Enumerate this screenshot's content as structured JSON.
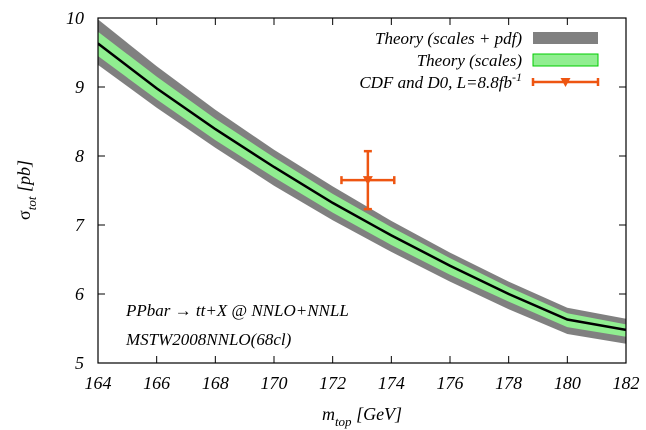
{
  "chart_data": {
    "type": "line",
    "xlabel": {
      "main": "m",
      "sub": "top",
      "rest": " [GeV]"
    },
    "ylabel": {
      "main": "σ",
      "sub": "tot",
      "rest": " [pb]"
    },
    "xlim": [
      164,
      182
    ],
    "ylim": [
      5,
      10
    ],
    "xticks": [
      164,
      166,
      168,
      170,
      172,
      174,
      176,
      178,
      180,
      182
    ],
    "yticks": [
      5,
      6,
      7,
      8,
      9,
      10
    ],
    "grid": false,
    "legend_position": "top-right",
    "colors": {
      "band_full": "#808080",
      "band_scales": "#90ee90",
      "band_scales_border": "#00cc00",
      "central": "#000000",
      "data": "#ee5511"
    },
    "legend": [
      {
        "text": "Theory (scales + pdf)"
      },
      {
        "text": "Theory (scales)"
      },
      {
        "text": "CDF and D0, L=8.8fb",
        "sup": "-1"
      }
    ],
    "series": [
      {
        "name": "Theory (scales + pdf)",
        "x": [
          164,
          166,
          168,
          170,
          172,
          174,
          176,
          178,
          180,
          182
        ],
        "lower": [
          9.32,
          8.7,
          8.12,
          7.57,
          7.07,
          6.61,
          6.18,
          5.78,
          5.42,
          5.28
        ],
        "upper": [
          9.98,
          9.3,
          8.67,
          8.09,
          7.56,
          7.06,
          6.6,
          6.18,
          5.8,
          5.64
        ]
      },
      {
        "name": "Theory (scales)",
        "x": [
          164,
          166,
          168,
          170,
          172,
          174,
          176,
          178,
          180,
          182
        ],
        "lower": [
          9.45,
          8.82,
          8.23,
          7.69,
          7.18,
          6.71,
          6.28,
          5.89,
          5.52,
          5.38
        ],
        "upper": [
          9.8,
          9.15,
          8.54,
          7.98,
          7.45,
          6.97,
          6.52,
          6.1,
          5.72,
          5.56
        ]
      },
      {
        "name": "central",
        "x": [
          164,
          166,
          168,
          170,
          172,
          174,
          176,
          178,
          180,
          182
        ],
        "y": [
          9.63,
          8.98,
          8.39,
          7.84,
          7.32,
          6.85,
          6.41,
          6.0,
          5.63,
          5.48
        ]
      }
    ],
    "measurement": {
      "name": "CDF and D0, L=8.8fb-1",
      "x": 173.2,
      "y": 7.65,
      "xerr": 0.9,
      "yerr": 0.42
    },
    "annotations": [
      {
        "text": "PPbar → tt+X @ NNLO+NNLL"
      },
      {
        "text": "MSTW2008NNLO(68cl)"
      }
    ]
  }
}
